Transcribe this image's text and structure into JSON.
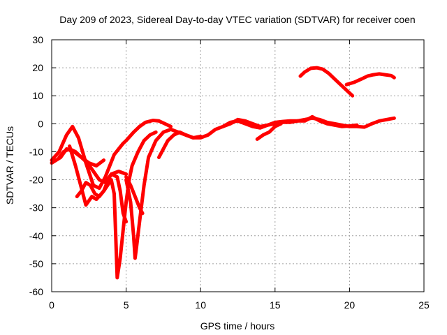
{
  "chart_data": {
    "type": "line",
    "title": "Day 209 of 2023, Sidereal Day-to-day VTEC variation (SDTVAR) for receiver coen",
    "xlabel": "GPS time / hours",
    "ylabel": "SDTVAR / TECUs",
    "xlim": [
      0,
      25
    ],
    "ylim": [
      -60,
      30
    ],
    "xticks": [
      0,
      5,
      10,
      15,
      20,
      25
    ],
    "yticks": [
      -60,
      -50,
      -40,
      -30,
      -20,
      -10,
      0,
      10,
      20,
      30
    ],
    "grid": true,
    "series_color": "#ff0000",
    "series": [
      {
        "name": "trace-1",
        "x": [
          0.0,
          0.5,
          1.0,
          1.4,
          1.8,
          2.3,
          2.8,
          3.2,
          3.6,
          4.2,
          4.5,
          4.8,
          5.0,
          5.5,
          5.9,
          6.3,
          6.8,
          7.2,
          7.6,
          8.0
        ],
        "values": [
          -13,
          -10,
          -4,
          -1,
          -5,
          -14,
          -22,
          -23,
          -19,
          -11,
          -9,
          -7,
          -6,
          -3,
          -1,
          0.5,
          1.2,
          1.0,
          0,
          -1
        ]
      },
      {
        "name": "trace-2",
        "x": [
          0.0,
          0.6,
          1.0,
          1.5,
          2.0,
          2.5,
          3.0,
          3.5
        ],
        "values": [
          -14,
          -12,
          -9,
          -10,
          -12,
          -14,
          -15,
          -13
        ]
      },
      {
        "name": "trace-3",
        "x": [
          0.5,
          0.8,
          1.2,
          1.6,
          2.0,
          2.4,
          2.8,
          3.2,
          3.6,
          4.0,
          4.4,
          4.6,
          4.8,
          5.0
        ],
        "values": [
          -12,
          -10,
          -9,
          -10,
          -12,
          -14,
          -17,
          -20,
          -21,
          -18,
          -19,
          -24,
          -32,
          -35
        ]
      },
      {
        "name": "trace-4",
        "x": [
          1.2,
          1.6,
          2.0,
          2.3,
          2.7,
          3.0,
          3.5,
          4.0,
          4.2,
          4.3,
          4.4,
          4.6,
          4.8,
          5.0,
          5.2,
          5.4,
          5.8,
          6.2,
          6.6,
          7.0
        ],
        "values": [
          -8,
          -15,
          -23,
          -29,
          -26,
          -27,
          -24,
          -20,
          -25,
          -40,
          -55,
          -48,
          -38,
          -28,
          -20,
          -15,
          -10,
          -6,
          -4,
          -3
        ]
      },
      {
        "name": "trace-5",
        "x": [
          1.7,
          2.0,
          2.3,
          2.6,
          2.9,
          3.2,
          3.5,
          3.8,
          4.0,
          4.5,
          5.0
        ],
        "values": [
          -26,
          -24,
          -21,
          -22,
          -25,
          -26,
          -24,
          -20,
          -18,
          -17,
          -18
        ]
      },
      {
        "name": "trace-6",
        "x": [
          5.0,
          5.3,
          5.5,
          5.6,
          5.7,
          5.9,
          6.2,
          6.5,
          7.0,
          7.5,
          8.0,
          8.5,
          9.0,
          9.5,
          10.0
        ],
        "values": [
          -20,
          -28,
          -40,
          -48,
          -44,
          -35,
          -22,
          -12,
          -6,
          -3,
          -2,
          -3,
          -4,
          -5,
          -4.5
        ]
      },
      {
        "name": "trace-7",
        "x": [
          5.0,
          5.3,
          5.6,
          5.9,
          6.1
        ],
        "values": [
          -19,
          -22,
          -26,
          -30,
          -32
        ]
      },
      {
        "name": "trace-8",
        "x": [
          7.2,
          7.5,
          7.8,
          8.2,
          8.6,
          9.0,
          9.5,
          10.0,
          10.5,
          11.0,
          11.5,
          12.0,
          12.5,
          13.0,
          13.5,
          14.0,
          14.5,
          15.0,
          15.5,
          16.0,
          16.5,
          17.0,
          17.5,
          18.0,
          18.5,
          19.0,
          19.5,
          20.0,
          20.5,
          21.0,
          21.5,
          22.0,
          22.5,
          23.0
        ],
        "values": [
          -12,
          -9,
          -6,
          -4,
          -3,
          -4,
          -5,
          -5,
          -4,
          -2,
          -1,
          0.5,
          1,
          0,
          -1,
          -1.5,
          -0.5,
          0.5,
          0.8,
          1,
          1,
          1.5,
          2,
          1.5,
          0.5,
          0,
          -0.5,
          -1,
          -1,
          -1.2,
          0,
          1,
          1.5,
          2
        ]
      },
      {
        "name": "trace-9",
        "x": [
          11.5,
          12.0,
          12.5,
          13.0,
          13.5,
          14.0,
          14.5,
          15.0,
          15.5,
          16.0,
          16.5,
          17.0,
          17.5,
          18.0,
          18.5,
          19.0,
          19.5,
          20.0,
          20.5
        ],
        "values": [
          -1,
          0,
          1.5,
          1,
          0,
          -1,
          -0.5,
          0,
          0.5,
          0.5,
          1,
          1,
          2.5,
          1,
          0,
          -0.5,
          -1,
          -0.8,
          -0.5
        ]
      },
      {
        "name": "trace-10",
        "x": [
          13.8,
          14.2,
          14.6,
          15.0,
          15.4
        ],
        "values": [
          -5.5,
          -4,
          -3,
          -1,
          0
        ]
      },
      {
        "name": "trace-11",
        "x": [
          16.7,
          17.0,
          17.4,
          17.8,
          18.2,
          18.6,
          19.0,
          19.4,
          19.8,
          20.2
        ],
        "values": [
          17,
          18.5,
          19.8,
          20,
          19.5,
          18,
          16,
          14,
          12,
          10
        ]
      },
      {
        "name": "trace-12",
        "x": [
          19.8,
          20.3,
          20.8,
          21.2,
          21.6,
          22.0,
          22.4,
          22.8,
          23.0
        ],
        "values": [
          14,
          14.8,
          16,
          17,
          17.5,
          17.8,
          17.5,
          17.2,
          16.5
        ]
      }
    ]
  }
}
